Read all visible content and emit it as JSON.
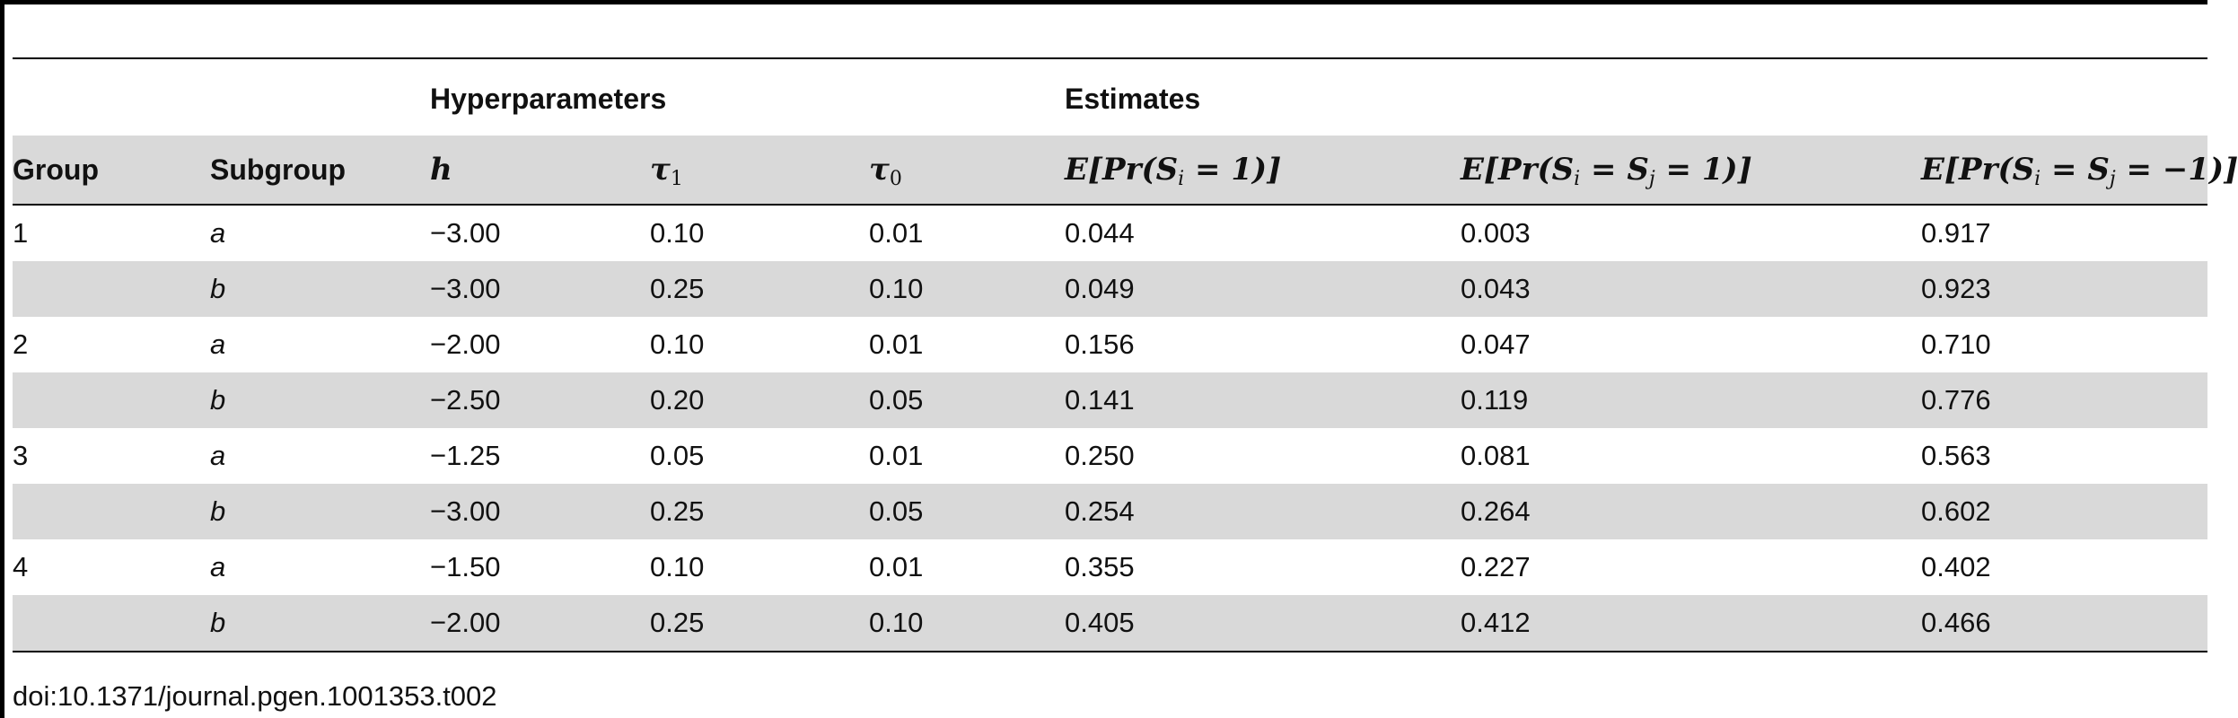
{
  "table": {
    "group_headers": {
      "hyperparameters": "Hyperparameters",
      "estimates": "Estimates"
    },
    "column_headers": {
      "group": "Group",
      "subgroup": "Subgroup",
      "h": "h",
      "tau1_symbol": "τ",
      "tau1_sub": "1",
      "tau0_symbol": "τ",
      "tau0_sub": "0",
      "est1": "E[Pr(S",
      "est1_sub": "i",
      "est1_tail": " = 1)]",
      "est2": "E[Pr(S",
      "est2_sub_i": "i",
      "est2_mid": " = S",
      "est2_sub_j": "j",
      "est2_tail": " = 1)]",
      "est3": "E[Pr(S",
      "est3_sub_i": "i",
      "est3_mid": " = S",
      "est3_sub_j": "j",
      "est3_tail": " = −1)]"
    },
    "rows": [
      {
        "group": "1",
        "subgroup": "a",
        "h": "−3.00",
        "tau1": "0.10",
        "tau0": "0.01",
        "e1": "0.044",
        "e2": "0.003",
        "e3": "0.917"
      },
      {
        "group": "",
        "subgroup": "b",
        "h": "−3.00",
        "tau1": "0.25",
        "tau0": "0.10",
        "e1": "0.049",
        "e2": "0.043",
        "e3": "0.923"
      },
      {
        "group": "2",
        "subgroup": "a",
        "h": "−2.00",
        "tau1": "0.10",
        "tau0": "0.01",
        "e1": "0.156",
        "e2": "0.047",
        "e3": "0.710"
      },
      {
        "group": "",
        "subgroup": "b",
        "h": "−2.50",
        "tau1": "0.20",
        "tau0": "0.05",
        "e1": "0.141",
        "e2": "0.119",
        "e3": "0.776"
      },
      {
        "group": "3",
        "subgroup": "a",
        "h": "−1.25",
        "tau1": "0.05",
        "tau0": "0.01",
        "e1": "0.250",
        "e2": "0.081",
        "e3": "0.563"
      },
      {
        "group": "",
        "subgroup": "b",
        "h": "−3.00",
        "tau1": "0.25",
        "tau0": "0.05",
        "e1": "0.254",
        "e2": "0.264",
        "e3": "0.602"
      },
      {
        "group": "4",
        "subgroup": "a",
        "h": "−1.50",
        "tau1": "0.10",
        "tau0": "0.01",
        "e1": "0.355",
        "e2": "0.227",
        "e3": "0.402"
      },
      {
        "group": "",
        "subgroup": "b",
        "h": "−2.00",
        "tau1": "0.25",
        "tau0": "0.10",
        "e1": "0.405",
        "e2": "0.412",
        "e3": "0.466"
      }
    ]
  },
  "footer": {
    "doi": "doi:10.1371/journal.pgen.1001353.t002"
  }
}
